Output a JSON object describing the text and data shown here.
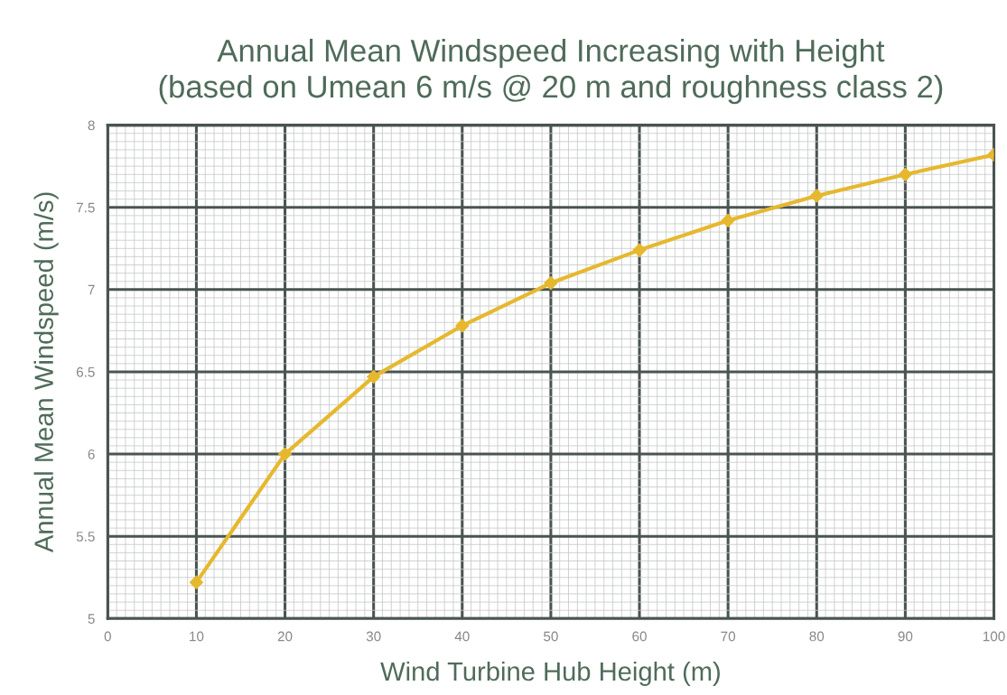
{
  "chart_data": {
    "type": "line",
    "title": "Annual Mean Windspeed Increasing with Height\n(based on Umean 6 m/s @ 20 m and roughness class 2)",
    "xlabel": "Wind Turbine Hub Height (m)",
    "ylabel": "Annual Mean Windspeed (m/s)",
    "x": [
      10,
      20,
      30,
      40,
      50,
      60,
      70,
      80,
      90,
      100
    ],
    "series": [
      {
        "color": "#e6b82e",
        "values": [
          5.22,
          6.0,
          6.47,
          6.78,
          7.04,
          7.24,
          7.42,
          7.57,
          7.7,
          7.82
        ]
      }
    ],
    "xlim": [
      0,
      100
    ],
    "ylim": [
      5,
      8
    ],
    "xticks": [
      0,
      10,
      20,
      30,
      40,
      50,
      60,
      70,
      80,
      90,
      100
    ],
    "yticks": [
      5,
      5.5,
      6,
      6.5,
      7,
      7.5,
      8
    ],
    "grid": true,
    "marker": "diamond",
    "line_style": "solid",
    "legend": false
  }
}
